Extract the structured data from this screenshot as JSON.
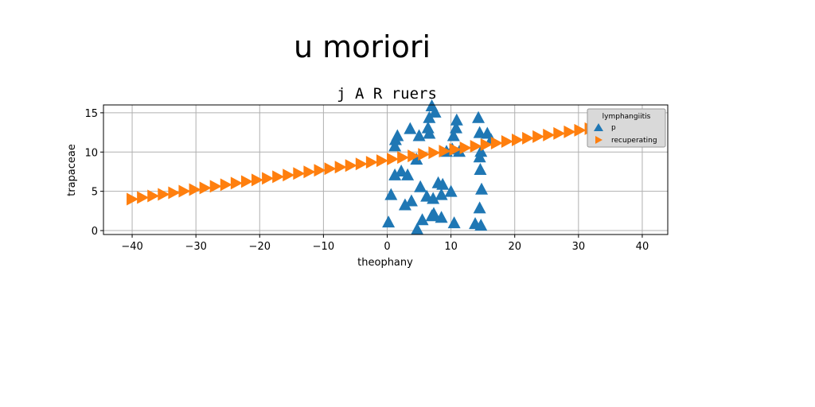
{
  "suptitle": "u moriori",
  "chart_data": {
    "type": "scatter",
    "title": "j A R ruers",
    "xlabel": "theophany",
    "ylabel": "trapaceae",
    "xlim": [
      -44.5,
      44
    ],
    "ylim": [
      -0.5,
      16
    ],
    "xticks": [
      -40,
      -30,
      -20,
      -10,
      0,
      10,
      20,
      30,
      40
    ],
    "yticks": [
      0,
      5,
      10,
      15
    ],
    "grid": true,
    "legend": {
      "title": "lymphangiitis",
      "position": "top-right"
    },
    "series": [
      {
        "name": "p",
        "marker": "triangle-up",
        "color": "#1f77b4",
        "points": [
          [
            0.2,
            1.0
          ],
          [
            1.2,
            10.7
          ],
          [
            1.3,
            11.5
          ],
          [
            1.6,
            12.0
          ],
          [
            0.6,
            4.5
          ],
          [
            1.2,
            7.0
          ],
          [
            2.2,
            7.5
          ],
          [
            3.2,
            7.0
          ],
          [
            2.8,
            3.2
          ],
          [
            3.8,
            3.7
          ],
          [
            3.6,
            12.9
          ],
          [
            5.0,
            12.0
          ],
          [
            4.6,
            9.0
          ],
          [
            5.2,
            5.5
          ],
          [
            4.7,
            0.1
          ],
          [
            5.5,
            1.3
          ],
          [
            6.2,
            4.3
          ],
          [
            6.6,
            14.3
          ],
          [
            6.4,
            13.0
          ],
          [
            6.6,
            12.3
          ],
          [
            7.0,
            15.8
          ],
          [
            7.5,
            15.0
          ],
          [
            7.2,
            4.0
          ],
          [
            7.0,
            1.8
          ],
          [
            7.3,
            2.1
          ],
          [
            8.0,
            6.0
          ],
          [
            8.5,
            4.5
          ],
          [
            8.5,
            1.6
          ],
          [
            9.3,
            10.0
          ],
          [
            8.7,
            5.8
          ],
          [
            10.0,
            4.9
          ],
          [
            10.2,
            10.3
          ],
          [
            10.4,
            12.0
          ],
          [
            10.8,
            13.0
          ],
          [
            10.9,
            14.0
          ],
          [
            11.3,
            10.0
          ],
          [
            10.5,
            0.9
          ],
          [
            14.3,
            14.3
          ],
          [
            14.5,
            12.4
          ],
          [
            14.7,
            10.0
          ],
          [
            14.5,
            9.3
          ],
          [
            14.6,
            7.7
          ],
          [
            14.8,
            5.2
          ],
          [
            14.5,
            2.8
          ],
          [
            13.8,
            0.8
          ],
          [
            14.7,
            0.6
          ],
          [
            15.7,
            12.3
          ],
          [
            16.3,
            11.5
          ]
        ]
      },
      {
        "name": "recuperating",
        "marker": "triangle-right",
        "color": "#ff7f0e",
        "x_start": -40,
        "x_end": 40,
        "y_start": 4.0,
        "y_end": 14.0,
        "count": 50
      }
    ]
  }
}
